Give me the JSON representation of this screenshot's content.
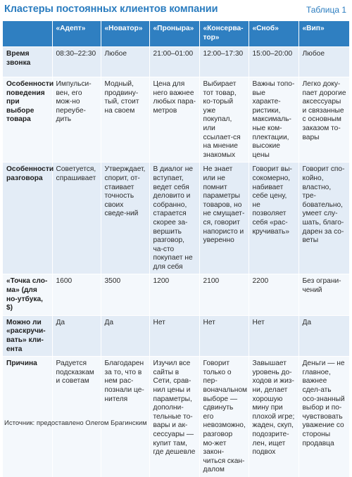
{
  "header": {
    "title": "Кластеры постоянных клиентов компании",
    "table_tag": "Таблица 1"
  },
  "table": {
    "columns": [
      "",
      "«Адепт»",
      "«Новатор»",
      "«Проныра»",
      "«Консерва-тор»",
      "«Сноб»",
      "«Вип»"
    ],
    "rows": [
      {
        "label": "Время звонка",
        "cells": [
          "08:30–22:30",
          "Любое",
          "21:00–01:00",
          "12:00–17:30",
          "15:00–20:00",
          "Любое"
        ]
      },
      {
        "label": "Особенности поведения при выборе товара",
        "cells": [
          "Импульси-вен, его мож-но переубе-дить",
          "Модный, продвину-тый, стоит на своем",
          "Цена для него важнее любых пара-метров",
          "Выбирает тот товар, ко-торый уже покупал, или ссылает-ся на мнение знакомых",
          "Важны топо-вые характе-ристики, максималь-ные ком-плектации, высокие цены",
          "Легко доку-пает дорогие аксессуары и связанные с основным заказом то-вары"
        ]
      },
      {
        "label": "Особенности разговора",
        "cells": [
          "Советуется, спрашивает",
          "Утверждает, спорит, от-стаивает точность своих сведе-ний",
          "В диалог не вступает, ведет себя деловито и собранно, старается скорее за-вершить разговор, ча-сто покупает не для себя",
          "Не знает или не помнит параметры товаров, но не смущает-ся, говорит напористо и уверенно",
          "Говорит вы-сокомерно, набивает себе цену, не позволяет себя «рас-кручивать»",
          "Говорит спо-койно, властно, тре-бовательно, умеет слу-шать, благо-дарен за со-веты"
        ]
      },
      {
        "label": "«Точка сло-ма» (для но-утбука, $)",
        "cells": [
          "1600",
          "3500",
          "1200",
          "2100",
          "2200",
          "Без ограни-чений"
        ]
      },
      {
        "label": "Можно ли «раскручи-вать» кли-ента",
        "cells": [
          "Да",
          "Да",
          "Нет",
          "Нет",
          "Нет",
          "Да"
        ]
      },
      {
        "label": "Причина",
        "cells": [
          "Радуется подсказкам и советам",
          "Благодарен за то, что в нем рас-познали це-нителя",
          "Изучил все сайты в Сети, срав-нил цены и параметры, дополни-тельные то-вары и ак-сессуары — купит там, где дешевле",
          "Говорит только о пер-воначальном выборе — сдвинуть его невозможно, разговор мо-жет закон-читься скан-далом",
          "Завышает уровень до-ходов и жиз-ни, делает хорошую мину при плохой игре; жаден, скуп, подозрите-лен, ищет подвох",
          "Деньги — не главное, важнее сдел-ать осо-знанный выбор и по-чувствовать уважение со стороны продавца"
        ]
      }
    ]
  },
  "footer": {
    "source": "Источник: предоставлено Олегом Брагинским"
  }
}
